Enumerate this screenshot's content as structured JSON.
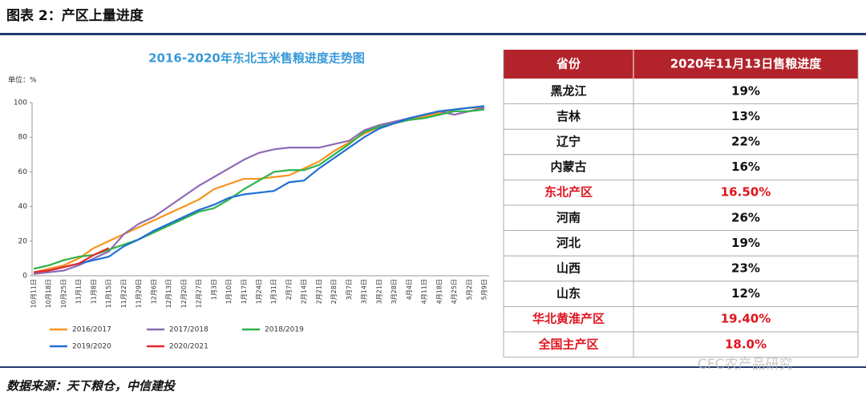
{
  "header": {
    "title": "图表 2：产区上量进度"
  },
  "chart_data": {
    "type": "line",
    "title": "2016-2020年东北玉米售粮进度走势图",
    "y_label": "单位：%",
    "categories": [
      "10月11日",
      "10月18日",
      "10月25日",
      "11月1日",
      "11月8日",
      "11月15日",
      "11月22日",
      "11月29日",
      "12月6日",
      "12月13日",
      "12月20日",
      "12月27日",
      "1月3日",
      "1月10日",
      "1月17日",
      "1月24日",
      "1月31日",
      "2月7日",
      "2月14日",
      "2月21日",
      "2月28日",
      "3月7日",
      "3月14日",
      "3月21日",
      "3月28日",
      "4月4日",
      "4月11日",
      "4月18日",
      "4月25日",
      "5月2日",
      "5月9日"
    ],
    "series": [
      {
        "name": "2016/2017",
        "color": "#f7941d",
        "values": [
          2,
          4,
          6,
          10,
          16,
          20,
          24,
          28,
          32,
          36,
          40,
          44,
          50,
          53,
          56,
          56,
          57,
          58,
          62,
          66,
          72,
          77,
          82,
          86,
          89,
          90,
          92,
          94,
          96,
          97,
          97
        ]
      },
      {
        "name": "2017/2018",
        "color": "#8e6bb5",
        "values": [
          1,
          2,
          3,
          6,
          10,
          14,
          24,
          30,
          34,
          40,
          46,
          52,
          57,
          62,
          67,
          71,
          73,
          74,
          74,
          74,
          76,
          78,
          84,
          87,
          89,
          91,
          93,
          95,
          93,
          95,
          97
        ]
      },
      {
        "name": "2018/2019",
        "color": "#2db34a",
        "values": [
          4,
          6,
          9,
          11,
          12,
          15,
          18,
          21,
          25,
          29,
          33,
          37,
          39,
          44,
          50,
          55,
          60,
          61,
          61,
          64,
          70,
          76,
          83,
          86,
          88,
          90,
          91,
          93,
          95,
          95,
          96
        ]
      },
      {
        "name": "2019/2020",
        "color": "#1f6fd6",
        "values": [
          2,
          3,
          5,
          7,
          9,
          11,
          17,
          21,
          26,
          30,
          34,
          38,
          41,
          45,
          47,
          48,
          49,
          54,
          55,
          62,
          68,
          74,
          80,
          85,
          88,
          91,
          93,
          95,
          96,
          97,
          98
        ]
      },
      {
        "name": "2020/2021",
        "color": "#e8262b",
        "values": [
          2,
          3,
          5,
          7,
          12,
          16,
          null,
          null,
          null,
          null,
          null,
          null,
          null,
          null,
          null,
          null,
          null,
          null,
          null,
          null,
          null,
          null,
          null,
          null,
          null,
          null,
          null,
          null,
          null,
          null,
          null
        ]
      }
    ],
    "ylim": [
      0,
      100
    ],
    "yticks": [
      0,
      20,
      40,
      60,
      80,
      100
    ],
    "grid": false
  },
  "table": {
    "header": [
      "省份",
      "2020年11月13日售粮进度"
    ],
    "rows": [
      {
        "name": "黑龙江",
        "value": "19%",
        "highlight": false
      },
      {
        "name": "吉林",
        "value": "13%",
        "highlight": false
      },
      {
        "name": "辽宁",
        "value": "22%",
        "highlight": false
      },
      {
        "name": "内蒙古",
        "value": "16%",
        "highlight": false
      },
      {
        "name": "东北产区",
        "value": "16.50%",
        "highlight": true
      },
      {
        "name": "河南",
        "value": "26%",
        "highlight": false
      },
      {
        "name": "河北",
        "value": "19%",
        "highlight": false
      },
      {
        "name": "山西",
        "value": "23%",
        "highlight": false
      },
      {
        "name": "山东",
        "value": "12%",
        "highlight": false
      },
      {
        "name": "华北黄淮产区",
        "value": "19.40%",
        "highlight": true
      },
      {
        "name": "全国主产区",
        "value": "18.0%",
        "highlight": true
      }
    ]
  },
  "watermark": "CFC农产品研究",
  "footer": {
    "source": "数据来源：天下粮仓，中信建投"
  }
}
